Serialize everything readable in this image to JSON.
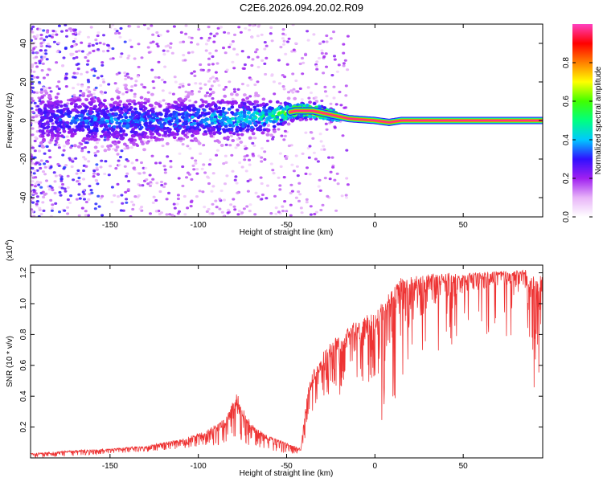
{
  "title": "C2E6.2026.094.20.02.R09",
  "colors": {
    "snr_line": "#ee3333",
    "axis": "#000000",
    "colorbar_stops": [
      "#ffffff",
      "#e8b4f8",
      "#a020f0",
      "#3010ff",
      "#00c8ff",
      "#00ff80",
      "#40ff00",
      "#ffff00",
      "#ff8000",
      "#ff0000",
      "#ff40c0"
    ]
  },
  "chart_data": [
    {
      "type": "heatmap",
      "name": "spectrogram",
      "title": "",
      "xlabel": "Height of straight line (km)",
      "ylabel": "Frequency (Hz)",
      "xlim": [
        -195,
        95
      ],
      "ylim": [
        -50,
        50
      ],
      "xticks": [
        -150,
        -100,
        -50,
        0,
        50
      ],
      "yticks": [
        -40,
        -20,
        0,
        20,
        40
      ],
      "xtick_labels": [
        "-150",
        "-100",
        "-50",
        "0",
        "50"
      ],
      "ytick_labels": [
        "-40",
        "-20",
        "0",
        "20",
        "40"
      ],
      "colorbar": {
        "label": "Normalized spectral amplitude",
        "range": [
          0.0,
          1.0
        ],
        "ticks": [
          0.0,
          0.2,
          0.4,
          0.6,
          0.8
        ],
        "tick_labels": [
          "0.0",
          "0.2",
          "0.4",
          "0.6",
          "0.8"
        ]
      },
      "signal_ridge": [
        {
          "x": -180,
          "freq": 1,
          "spread": 6,
          "amp": 0.25
        },
        {
          "x": -160,
          "freq": 0,
          "spread": 6,
          "amp": 0.3
        },
        {
          "x": -140,
          "freq": 0,
          "spread": 6,
          "amp": 0.3
        },
        {
          "x": -120,
          "freq": 0,
          "spread": 5,
          "amp": 0.3
        },
        {
          "x": -100,
          "freq": 1,
          "spread": 5,
          "amp": 0.35
        },
        {
          "x": -80,
          "freq": 1,
          "spread": 5,
          "amp": 0.4
        },
        {
          "x": -60,
          "freq": 2,
          "spread": 4,
          "amp": 0.45
        },
        {
          "x": -45,
          "freq": 5,
          "spread": 2,
          "amp": 0.8
        },
        {
          "x": -35,
          "freq": 5,
          "spread": 2,
          "amp": 0.9
        },
        {
          "x": -25,
          "freq": 3,
          "spread": 1.5,
          "amp": 0.95
        },
        {
          "x": -15,
          "freq": 1,
          "spread": 1,
          "amp": 1.0
        },
        {
          "x": 0,
          "freq": 0,
          "spread": 1,
          "amp": 1.0
        },
        {
          "x": 8,
          "freq": -1,
          "spread": 1,
          "amp": 1.0
        },
        {
          "x": 15,
          "freq": 0,
          "spread": 1,
          "amp": 1.0
        },
        {
          "x": 50,
          "freq": 0,
          "spread": 1,
          "amp": 1.0
        },
        {
          "x": 92,
          "freq": 0,
          "spread": 1,
          "amp": 1.0
        }
      ]
    },
    {
      "type": "line",
      "name": "snr",
      "title": "",
      "xlabel": "Height of straight line (km)",
      "ylabel": "SNR (10 * v/v)",
      "y_multiplier_label": "(x10",
      "y_multiplier_exp": "4",
      "y_multiplier_close": ")",
      "xlim": [
        -195,
        95
      ],
      "ylim": [
        0.0,
        1.25
      ],
      "xticks": [
        -150,
        -100,
        -50,
        0,
        50
      ],
      "yticks": [
        0.2,
        0.4,
        0.6,
        0.8,
        1.0,
        1.2
      ],
      "xtick_labels": [
        "-150",
        "-100",
        "-50",
        "0",
        "50"
      ],
      "ytick_labels": [
        "0.2",
        "0.4",
        "0.6",
        "0.8",
        "1.0",
        "1.2"
      ],
      "envelope": {
        "x": [
          -195,
          -170,
          -150,
          -130,
          -110,
          -95,
          -85,
          -78,
          -70,
          -60,
          -50,
          -42,
          -38,
          -34,
          -28,
          -20,
          -12,
          -5,
          5,
          15,
          25,
          35,
          50,
          70,
          85,
          88,
          95
        ],
        "low": [
          0.0,
          0.01,
          0.03,
          0.04,
          0.06,
          0.08,
          0.08,
          0.1,
          0.06,
          0.05,
          0.03,
          0.02,
          0.2,
          0.3,
          0.36,
          0.4,
          0.44,
          0.46,
          0.6,
          0.78,
          0.9,
          1.0,
          1.06,
          1.12,
          1.1,
          0.62,
          0.85
        ],
        "high": [
          0.03,
          0.05,
          0.06,
          0.08,
          0.12,
          0.18,
          0.26,
          0.42,
          0.22,
          0.14,
          0.1,
          0.06,
          0.45,
          0.6,
          0.72,
          0.8,
          0.88,
          0.92,
          1.02,
          1.18,
          1.18,
          1.2,
          1.2,
          1.21,
          1.22,
          1.2,
          1.18
        ]
      }
    }
  ]
}
